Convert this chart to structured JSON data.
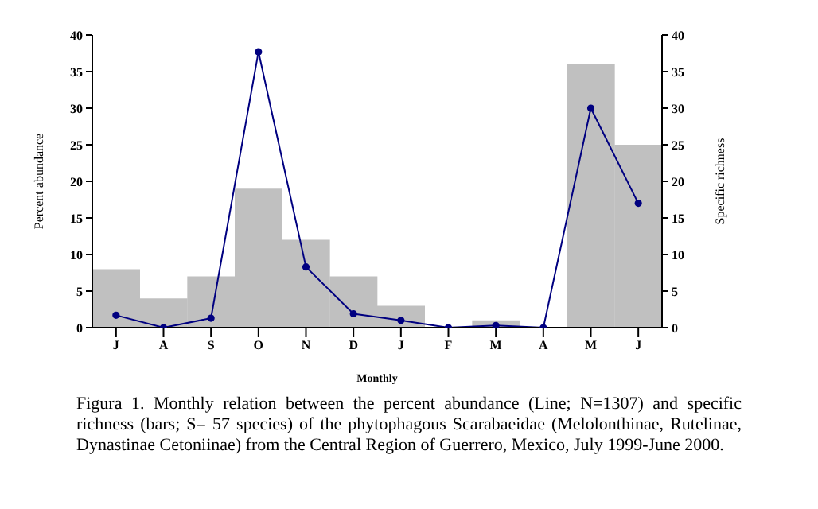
{
  "chart_data": {
    "type": "bar",
    "xlabel": "Monthly",
    "ylabel": "Percent abundance",
    "y2label": "Specific richness",
    "categories": [
      "J",
      "A",
      "S",
      "O",
      "N",
      "D",
      "J",
      "F",
      "M",
      "A",
      "M",
      "J"
    ],
    "series": [
      {
        "color": "#c0c0c0",
        "values": [
          8,
          4,
          7,
          19,
          12,
          7,
          3,
          0,
          1,
          0,
          36,
          25
        ]
      },
      {
        "type": "line",
        "color": "#000080",
        "values": [
          1.7,
          0,
          1.3,
          37.7,
          8.3,
          1.9,
          1.0,
          0,
          0.3,
          0,
          30,
          17
        ]
      }
    ],
    "ylim": [
      0,
      40
    ],
    "yticks": [
      0,
      5,
      10,
      15,
      20,
      25,
      30,
      35,
      40
    ],
    "y2lim": [
      0,
      40
    ],
    "y2ticks": [
      0,
      5,
      10,
      15,
      20,
      25,
      30,
      35,
      40
    ],
    "grid": false,
    "legend": false,
    "marker": "circle",
    "line_style": "solid",
    "annotations": [
      "Figura 1. Monthly relation between the percent abundance (Line; N=1307) and specific richness (bars; S= 57 species) of the phytophagous Scarabaeidae (Melolonthinae, Rutelinae, Dynastinae Cetoniinae) from the Central Region of Guerrero, Mexico, July 1999-June 2000."
    ]
  }
}
